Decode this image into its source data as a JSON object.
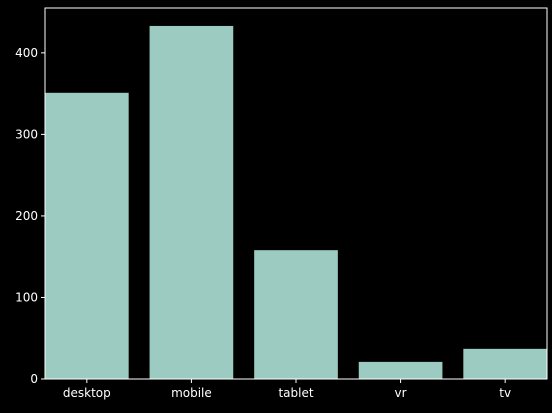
{
  "chart_data": {
    "type": "bar",
    "categories": [
      "desktop",
      "mobile",
      "tablet",
      "vr",
      "tv"
    ],
    "values": [
      351,
      433,
      158,
      21,
      37
    ],
    "title": "",
    "xlabel": "",
    "ylabel": "",
    "ylim": [
      0,
      455
    ],
    "yticks": [
      0,
      100,
      200,
      300,
      400
    ],
    "grid": false,
    "colors": {
      "background": "#000000",
      "bar": "#9ccbc2",
      "axis": "#ffffff",
      "text": "#ffffff"
    }
  }
}
